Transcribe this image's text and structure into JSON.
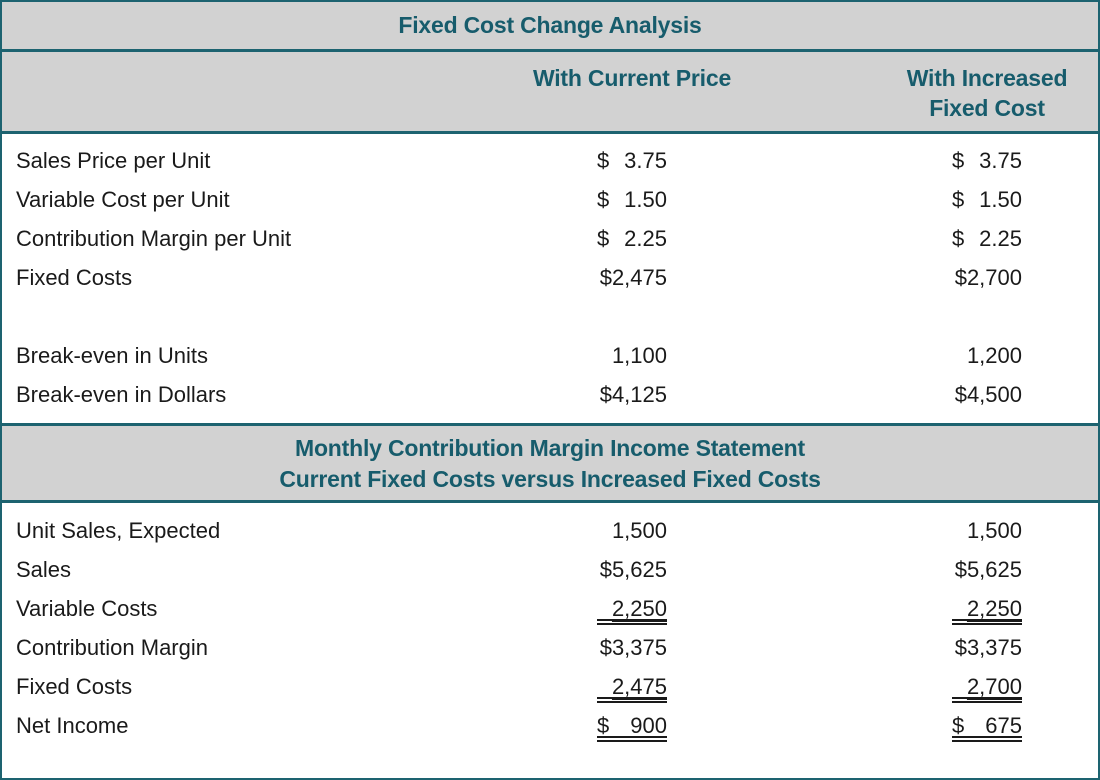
{
  "title": "Fixed Cost Change Analysis",
  "columns": {
    "col1": "With Current Price",
    "col2": "With Increased Fixed Cost"
  },
  "colors": {
    "teal_text": "#175c6c",
    "teal_border": "#1d6370",
    "band_bg": "#d2d2d2",
    "ink": "#1a1a1a"
  },
  "section1": {
    "rows": [
      {
        "label": "Sales Price per Unit",
        "c1_cur": "$",
        "c1_num": "3.75",
        "c2_cur": "$",
        "c2_num": "3.75"
      },
      {
        "label": "Variable Cost per Unit",
        "c1_cur": "$",
        "c1_num": "1.50",
        "c2_cur": "$",
        "c2_num": "1.50"
      },
      {
        "label": "Contribution Margin per Unit",
        "c1_cur": "$",
        "c1_num": "2.25",
        "c2_cur": "$",
        "c2_num": "2.25"
      },
      {
        "label": "Fixed Costs",
        "c1_cur": "",
        "c1_num": "$2,475",
        "c2_cur": "",
        "c2_num": "$2,700"
      },
      {
        "label": "",
        "c1_cur": "",
        "c1_num": "",
        "c2_cur": "",
        "c2_num": ""
      },
      {
        "label": "Break-even in Units",
        "c1_cur": "",
        "c1_num": "1,100",
        "c2_cur": "",
        "c2_num": "1,200"
      },
      {
        "label": "Break-even in Dollars",
        "c1_cur": "",
        "c1_num": "$4,125",
        "c2_cur": "",
        "c2_num": "$4,500"
      }
    ]
  },
  "section2": {
    "header_line1": "Monthly Contribution Margin Income Statement",
    "header_line2": "Current Fixed Costs versus Increased Fixed Costs",
    "rows": [
      {
        "label": "Unit Sales, Expected",
        "c1_cur": "",
        "c1_num": "1,500",
        "c2_cur": "",
        "c2_num": "1,500"
      },
      {
        "label": "Sales",
        "c1_cur": "",
        "c1_num": "$5,625",
        "c2_cur": "",
        "c2_num": "$5,625"
      },
      {
        "label": "Variable Costs",
        "c1_cur": "",
        "c1_num": "2,250",
        "c2_cur": "",
        "c2_num": "2,250"
      },
      {
        "label": "Contribution Margin",
        "c1_cur": "",
        "c1_num": "$3,375",
        "c2_cur": "",
        "c2_num": "$3,375"
      },
      {
        "label": "Fixed Costs",
        "c1_cur": "",
        "c1_num": "2,475",
        "c2_cur": "",
        "c2_num": "2,700"
      },
      {
        "label": "Net Income",
        "c1_cur": "$",
        "c1_num": "900",
        "c2_cur": "$",
        "c2_num": "675"
      }
    ]
  },
  "chart_data": [
    {
      "type": "table",
      "title": "Fixed Cost Change Analysis",
      "columns": [
        "",
        "With Current Price",
        "With Increased Fixed Cost"
      ],
      "rows": [
        [
          "Sales Price per Unit",
          "$ 3.75",
          "$ 3.75"
        ],
        [
          "Variable Cost per Unit",
          "$ 1.50",
          "$ 1.50"
        ],
        [
          "Contribution Margin per Unit",
          "$ 2.25",
          "$ 2.25"
        ],
        [
          "Fixed Costs",
          "$2,475",
          "$2,700"
        ],
        [
          "Break-even in Units",
          "1,100",
          "1,200"
        ],
        [
          "Break-even in Dollars",
          "$4,125",
          "$4,500"
        ]
      ]
    },
    {
      "type": "table",
      "title": "Monthly Contribution Margin Income Statement Current Fixed Costs versus Increased Fixed Costs",
      "columns": [
        "",
        "With Current Price",
        "With Increased Fixed Cost"
      ],
      "rows": [
        [
          "Unit Sales, Expected",
          "1,500",
          "1,500"
        ],
        [
          "Sales",
          "$5,625",
          "$5,625"
        ],
        [
          "Variable Costs",
          "2,250",
          "2,250"
        ],
        [
          "Contribution Margin",
          "$3,375",
          "$3,375"
        ],
        [
          "Fixed Costs",
          "2,475",
          "2,700"
        ],
        [
          "Net Income",
          "$ 900",
          "$ 675"
        ]
      ],
      "notes": "Variable Costs and Fixed Costs amounts shown with single underline plus double rule; Net Income shown with double rule."
    }
  ]
}
